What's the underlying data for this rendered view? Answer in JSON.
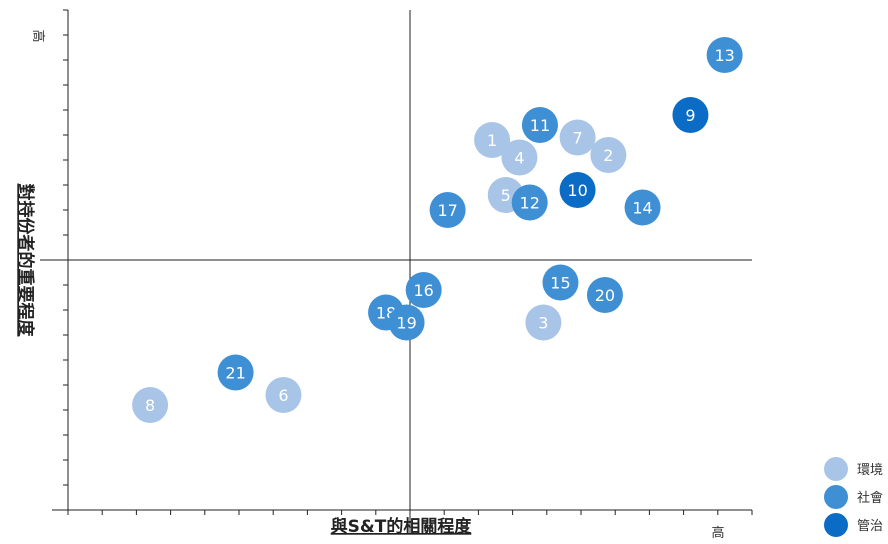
{
  "chart_data": {
    "type": "scatter",
    "xlabel": "與S&T的相關程度",
    "ylabel": "對持份者的重要程度",
    "x_high_label": "高",
    "y_high_label": "高",
    "xlim": [
      0,
      20
    ],
    "ylim": [
      0,
      20
    ],
    "grid": false,
    "legend_position": "bottom-right",
    "series": [
      {
        "name": "環境",
        "color": "#a8c5e8",
        "points": [
          {
            "label": "1",
            "x": 12.4,
            "y": 14.8
          },
          {
            "label": "2",
            "x": 15.8,
            "y": 14.2
          },
          {
            "label": "3",
            "x": 13.9,
            "y": 7.5
          },
          {
            "label": "4",
            "x": 13.2,
            "y": 14.1
          },
          {
            "label": "5",
            "x": 12.8,
            "y": 12.6
          },
          {
            "label": "6",
            "x": 6.3,
            "y": 4.6
          },
          {
            "label": "7",
            "x": 14.9,
            "y": 14.9
          },
          {
            "label": "8",
            "x": 2.4,
            "y": 4.2
          }
        ]
      },
      {
        "name": "社會",
        "color": "#3f8fd4",
        "points": [
          {
            "label": "11",
            "x": 13.8,
            "y": 15.4
          },
          {
            "label": "12",
            "x": 13.5,
            "y": 12.3
          },
          {
            "label": "13",
            "x": 19.2,
            "y": 18.2
          },
          {
            "label": "14",
            "x": 16.8,
            "y": 12.1
          },
          {
            "label": "15",
            "x": 14.4,
            "y": 9.1
          },
          {
            "label": "16",
            "x": 10.4,
            "y": 8.8
          },
          {
            "label": "17",
            "x": 11.1,
            "y": 12.0
          },
          {
            "label": "18",
            "x": 9.3,
            "y": 7.9
          },
          {
            "label": "19",
            "x": 9.9,
            "y": 7.5
          },
          {
            "label": "20",
            "x": 15.7,
            "y": 8.6
          },
          {
            "label": "21",
            "x": 4.9,
            "y": 5.5
          }
        ]
      },
      {
        "name": "管治",
        "color": "#0a6cc4",
        "points": [
          {
            "label": "9",
            "x": 18.2,
            "y": 15.8
          },
          {
            "label": "10",
            "x": 14.9,
            "y": 12.8
          }
        ]
      }
    ]
  }
}
